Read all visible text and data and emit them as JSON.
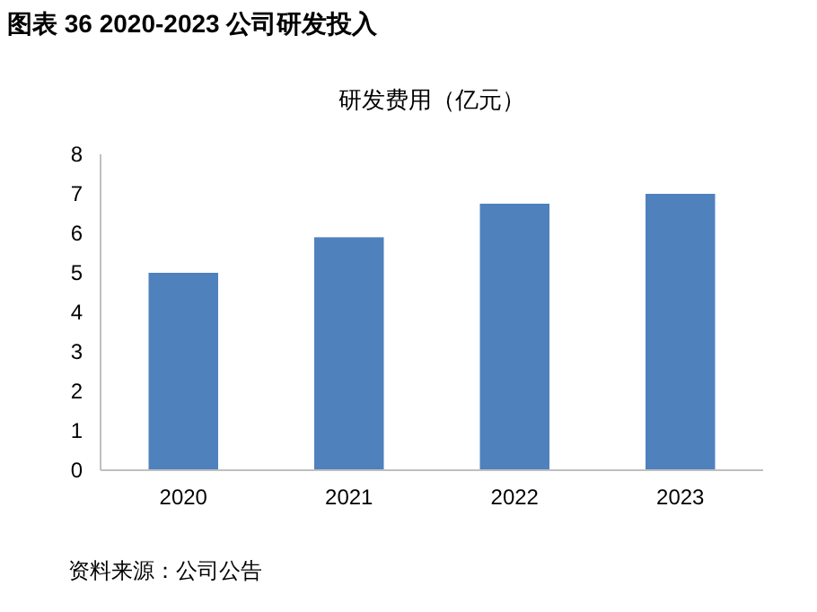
{
  "chart_data": {
    "type": "bar",
    "title": "图表 36 2020-2023 公司研发投入",
    "subtitle": "研发费用（亿元）",
    "categories": [
      "2020",
      "2021",
      "2022",
      "2023"
    ],
    "values": [
      5.0,
      5.9,
      6.75,
      7.0
    ],
    "color": "#4f81bd",
    "ylim": [
      0,
      8
    ],
    "yticks": [
      0,
      1,
      2,
      3,
      4,
      5,
      6,
      7,
      8
    ],
    "grid": false,
    "annotations": [
      "资料来源：公司公告"
    ]
  }
}
